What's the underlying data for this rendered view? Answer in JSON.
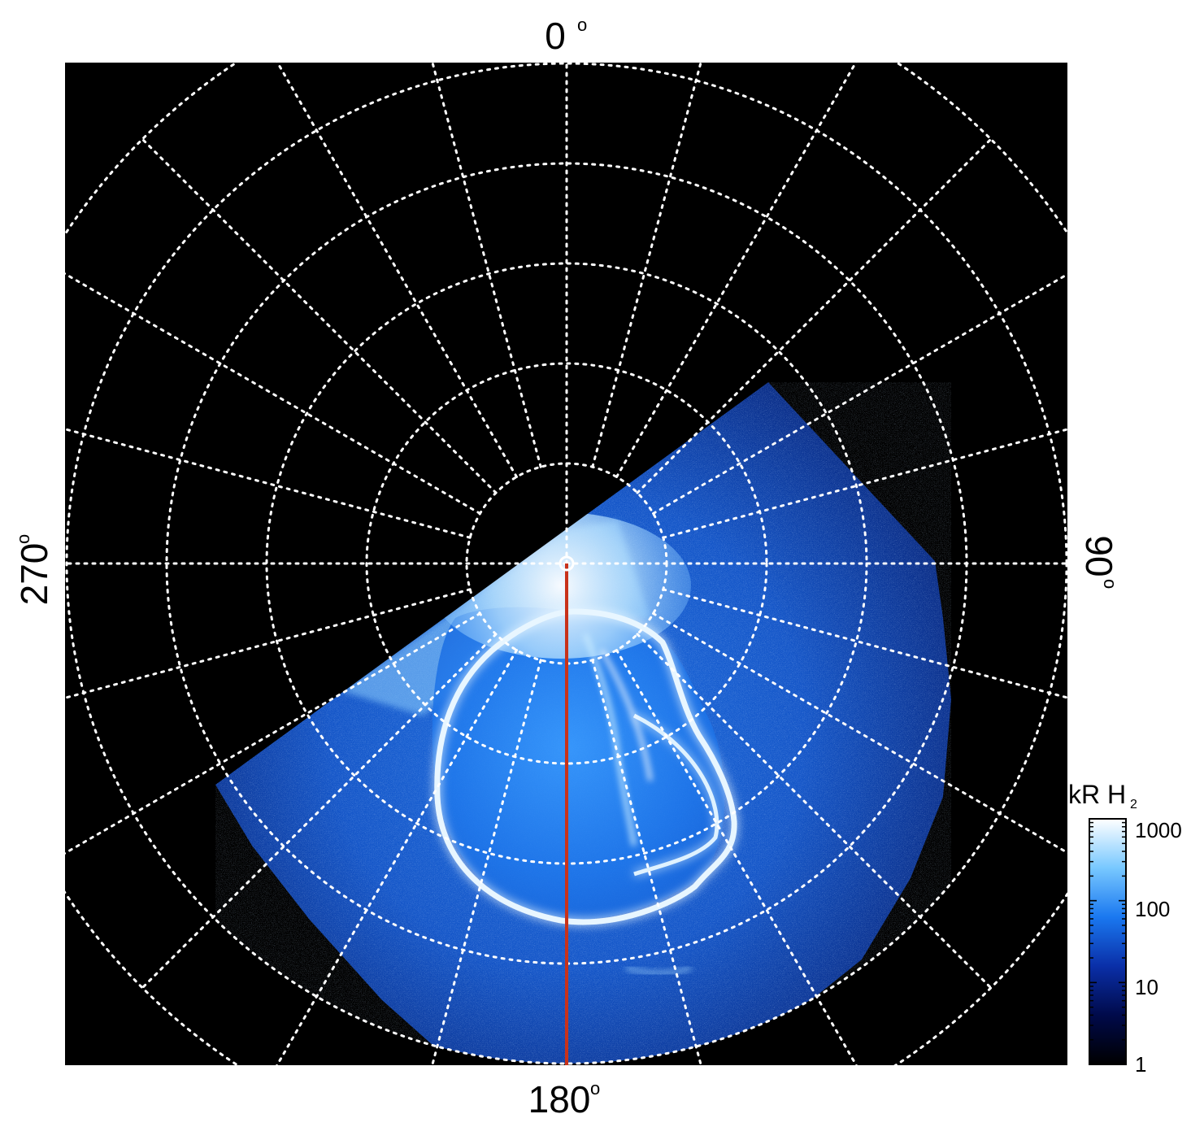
{
  "map": {
    "longitude_labels": {
      "top": "0",
      "right": "90",
      "bottom": "180",
      "left": "270"
    },
    "degree_symbol": "o",
    "meridian_step_deg": 15,
    "parallel_step_deg": 10,
    "parallel_count": 6,
    "reference_meridian_deg": 180,
    "reference_meridian_color": "#c8321a",
    "grid_color": "#ffffff",
    "background_color": "#000000"
  },
  "colorbar": {
    "title": "kR H",
    "title_subscript": "2",
    "scale": "log",
    "range": [
      1,
      1000
    ],
    "ticks": [
      "1",
      "10",
      "100",
      "1000"
    ],
    "colors": [
      "#000000",
      "#000a4a",
      "#0a2fa8",
      "#1a78f0",
      "#78c8ff",
      "#ffffff"
    ]
  }
}
